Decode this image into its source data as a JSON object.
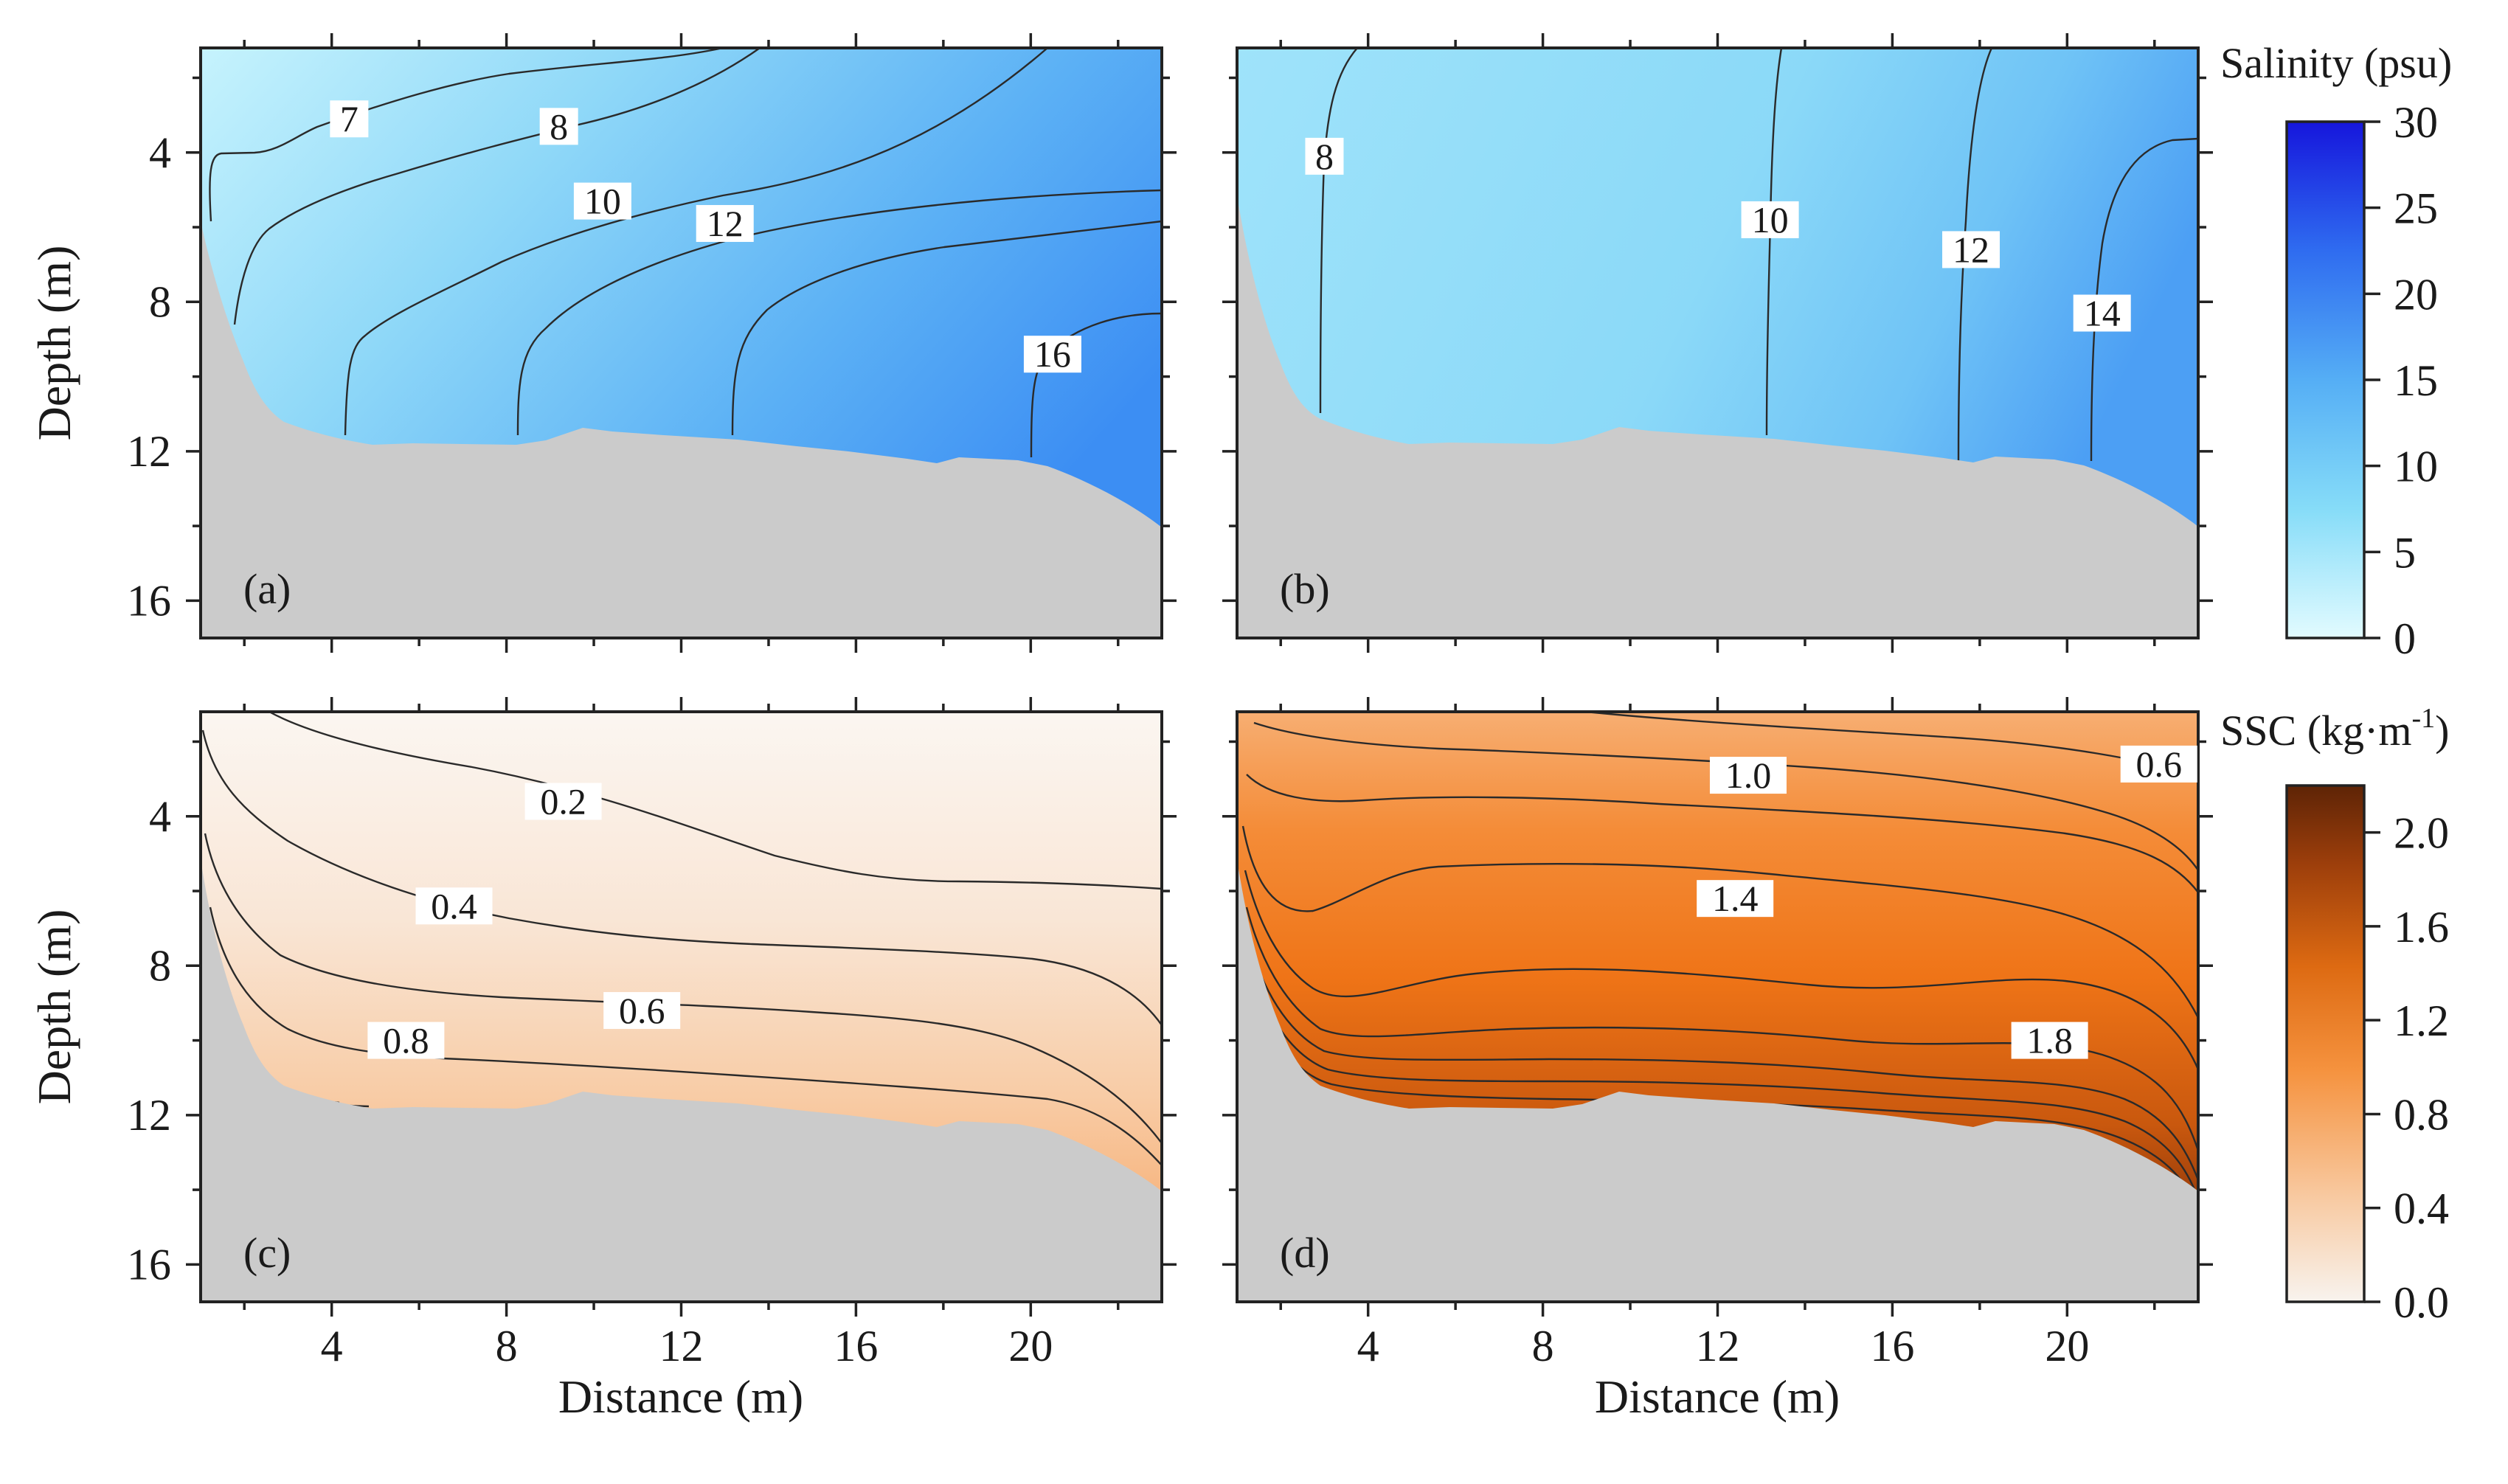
{
  "chart_data": [
    {
      "id": "a",
      "type": "heatmap",
      "panel_label": "(a)",
      "variable": "salinity",
      "xlabel": "",
      "ylabel": "Depth (m)",
      "xlim": [
        1,
        23
      ],
      "ylim": [
        17,
        1.2
      ],
      "xticks": [
        4,
        8,
        12,
        16,
        20
      ],
      "yticks": [
        4,
        8,
        12,
        16
      ],
      "contour_labels": [
        {
          "text": "7",
          "x": 4.4,
          "y": 3.1
        },
        {
          "text": "8",
          "x": 9.2,
          "y": 3.3
        },
        {
          "text": "10",
          "x": 10.2,
          "y": 5.3
        },
        {
          "text": "12",
          "x": 13.0,
          "y": 5.9
        },
        {
          "text": "16",
          "x": 20.5,
          "y": 9.4
        }
      ]
    },
    {
      "id": "b",
      "type": "heatmap",
      "panel_label": "(b)",
      "variable": "salinity",
      "xlabel": "",
      "ylabel": "",
      "xlim": [
        1,
        23
      ],
      "ylim": [
        17,
        1.2
      ],
      "xticks": [
        4,
        8,
        12,
        16,
        20
      ],
      "yticks": [
        4,
        8,
        12,
        16
      ],
      "contour_labels": [
        {
          "text": "8",
          "x": 3.0,
          "y": 4.1
        },
        {
          "text": "10",
          "x": 13.2,
          "y": 5.8
        },
        {
          "text": "12",
          "x": 17.8,
          "y": 6.6
        },
        {
          "text": "14",
          "x": 20.8,
          "y": 8.3
        }
      ]
    },
    {
      "id": "c",
      "type": "heatmap",
      "panel_label": "(c)",
      "variable": "SSC",
      "xlabel": "Distance (m)",
      "ylabel": "Depth (m)",
      "xlim": [
        1,
        23
      ],
      "ylim": [
        17,
        1.2
      ],
      "xticks": [
        4,
        8,
        12,
        16,
        20
      ],
      "yticks": [
        4,
        8,
        12,
        16
      ],
      "contour_labels": [
        {
          "text": "0.2",
          "x": 9.3,
          "y": 3.6
        },
        {
          "text": "0.4",
          "x": 6.8,
          "y": 6.4
        },
        {
          "text": "0.6",
          "x": 11.1,
          "y": 9.2
        },
        {
          "text": "0.8",
          "x": 5.7,
          "y": 10.0
        }
      ]
    },
    {
      "id": "d",
      "type": "heatmap",
      "panel_label": "(d)",
      "variable": "SSC",
      "xlabel": "Distance (m)",
      "ylabel": "",
      "xlim": [
        1,
        23
      ],
      "ylim": [
        17,
        1.2
      ],
      "xticks": [
        4,
        8,
        12,
        16,
        20
      ],
      "yticks": [
        4,
        8,
        12,
        16
      ],
      "contour_labels": [
        {
          "text": "1.0",
          "x": 12.7,
          "y": 2.9
        },
        {
          "text": "0.6",
          "x": 22.1,
          "y": 2.6
        },
        {
          "text": "1.4",
          "x": 12.4,
          "y": 6.2
        },
        {
          "text": "1.8",
          "x": 19.6,
          "y": 10.0
        }
      ]
    }
  ],
  "colorbars": [
    {
      "id": "salinity",
      "title": "Salinity (psu)",
      "range": [
        0,
        30
      ],
      "ticks": [
        "0",
        "5",
        "10",
        "15",
        "20",
        "25",
        "30"
      ],
      "colors": [
        "#e2fbff",
        "#7cd8f7",
        "#4ea3f5",
        "#2f6bf0",
        "#1616dc"
      ]
    },
    {
      "id": "ssc",
      "title": "SSC (kg·m",
      "title_sup": "-1",
      "title_close": ")",
      "range": [
        0,
        2.2
      ],
      "ticks": [
        "0.0",
        "0.4",
        "0.8",
        "1.2",
        "1.6",
        "2.0"
      ],
      "colors": [
        "#f8f3ee",
        "#f8c9a0",
        "#f5923e",
        "#dd6a12",
        "#9c3e0b",
        "#5e2406"
      ]
    }
  ]
}
